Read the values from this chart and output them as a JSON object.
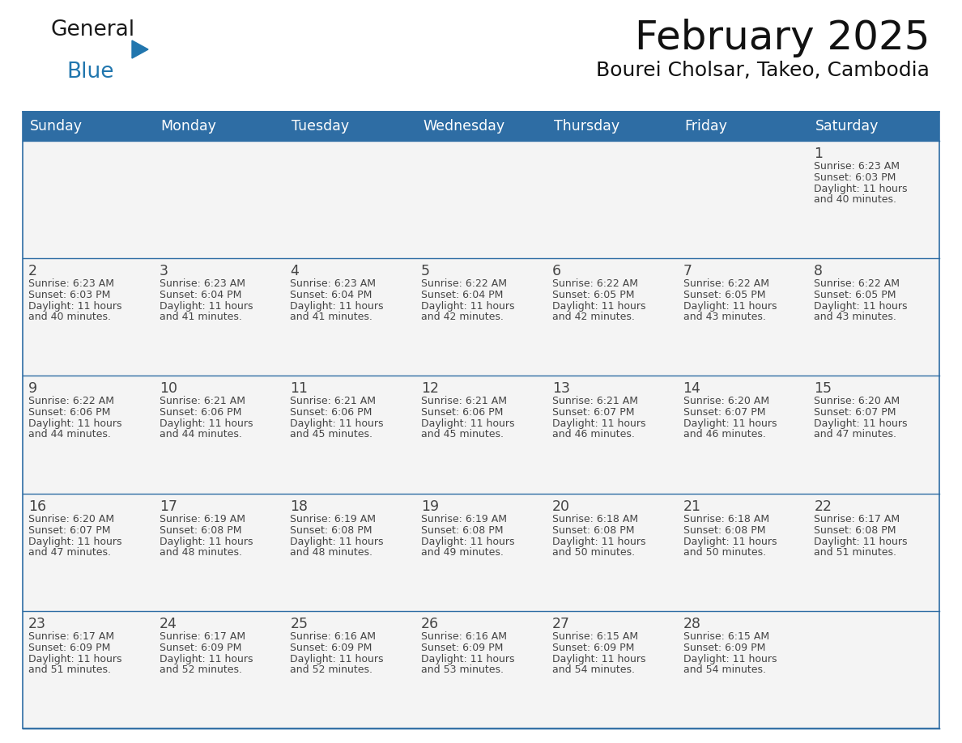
{
  "title": "February 2025",
  "subtitle": "Bourei Cholsar, Takeo, Cambodia",
  "header_color": "#2E6DA4",
  "header_text_color": "#FFFFFF",
  "cell_bg_color": "#F2F2F2",
  "border_color": "#2E6DA4",
  "text_color": "#444444",
  "days_of_week": [
    "Sunday",
    "Monday",
    "Tuesday",
    "Wednesday",
    "Thursday",
    "Friday",
    "Saturday"
  ],
  "logo_color1": "#1a1a1a",
  "logo_color2": "#2176AE",
  "calendar_data": [
    [
      null,
      null,
      null,
      null,
      null,
      null,
      {
        "day": 1,
        "sunrise": "6:23 AM",
        "sunset": "6:03 PM",
        "daylight_line1": "Daylight: 11 hours",
        "daylight_line2": "and 40 minutes."
      }
    ],
    [
      {
        "day": 2,
        "sunrise": "6:23 AM",
        "sunset": "6:03 PM",
        "daylight_line1": "Daylight: 11 hours",
        "daylight_line2": "and 40 minutes."
      },
      {
        "day": 3,
        "sunrise": "6:23 AM",
        "sunset": "6:04 PM",
        "daylight_line1": "Daylight: 11 hours",
        "daylight_line2": "and 41 minutes."
      },
      {
        "day": 4,
        "sunrise": "6:23 AM",
        "sunset": "6:04 PM",
        "daylight_line1": "Daylight: 11 hours",
        "daylight_line2": "and 41 minutes."
      },
      {
        "day": 5,
        "sunrise": "6:22 AM",
        "sunset": "6:04 PM",
        "daylight_line1": "Daylight: 11 hours",
        "daylight_line2": "and 42 minutes."
      },
      {
        "day": 6,
        "sunrise": "6:22 AM",
        "sunset": "6:05 PM",
        "daylight_line1": "Daylight: 11 hours",
        "daylight_line2": "and 42 minutes."
      },
      {
        "day": 7,
        "sunrise": "6:22 AM",
        "sunset": "6:05 PM",
        "daylight_line1": "Daylight: 11 hours",
        "daylight_line2": "and 43 minutes."
      },
      {
        "day": 8,
        "sunrise": "6:22 AM",
        "sunset": "6:05 PM",
        "daylight_line1": "Daylight: 11 hours",
        "daylight_line2": "and 43 minutes."
      }
    ],
    [
      {
        "day": 9,
        "sunrise": "6:22 AM",
        "sunset": "6:06 PM",
        "daylight_line1": "Daylight: 11 hours",
        "daylight_line2": "and 44 minutes."
      },
      {
        "day": 10,
        "sunrise": "6:21 AM",
        "sunset": "6:06 PM",
        "daylight_line1": "Daylight: 11 hours",
        "daylight_line2": "and 44 minutes."
      },
      {
        "day": 11,
        "sunrise": "6:21 AM",
        "sunset": "6:06 PM",
        "daylight_line1": "Daylight: 11 hours",
        "daylight_line2": "and 45 minutes."
      },
      {
        "day": 12,
        "sunrise": "6:21 AM",
        "sunset": "6:06 PM",
        "daylight_line1": "Daylight: 11 hours",
        "daylight_line2": "and 45 minutes."
      },
      {
        "day": 13,
        "sunrise": "6:21 AM",
        "sunset": "6:07 PM",
        "daylight_line1": "Daylight: 11 hours",
        "daylight_line2": "and 46 minutes."
      },
      {
        "day": 14,
        "sunrise": "6:20 AM",
        "sunset": "6:07 PM",
        "daylight_line1": "Daylight: 11 hours",
        "daylight_line2": "and 46 minutes."
      },
      {
        "day": 15,
        "sunrise": "6:20 AM",
        "sunset": "6:07 PM",
        "daylight_line1": "Daylight: 11 hours",
        "daylight_line2": "and 47 minutes."
      }
    ],
    [
      {
        "day": 16,
        "sunrise": "6:20 AM",
        "sunset": "6:07 PM",
        "daylight_line1": "Daylight: 11 hours",
        "daylight_line2": "and 47 minutes."
      },
      {
        "day": 17,
        "sunrise": "6:19 AM",
        "sunset": "6:08 PM",
        "daylight_line1": "Daylight: 11 hours",
        "daylight_line2": "and 48 minutes."
      },
      {
        "day": 18,
        "sunrise": "6:19 AM",
        "sunset": "6:08 PM",
        "daylight_line1": "Daylight: 11 hours",
        "daylight_line2": "and 48 minutes."
      },
      {
        "day": 19,
        "sunrise": "6:19 AM",
        "sunset": "6:08 PM",
        "daylight_line1": "Daylight: 11 hours",
        "daylight_line2": "and 49 minutes."
      },
      {
        "day": 20,
        "sunrise": "6:18 AM",
        "sunset": "6:08 PM",
        "daylight_line1": "Daylight: 11 hours",
        "daylight_line2": "and 50 minutes."
      },
      {
        "day": 21,
        "sunrise": "6:18 AM",
        "sunset": "6:08 PM",
        "daylight_line1": "Daylight: 11 hours",
        "daylight_line2": "and 50 minutes."
      },
      {
        "day": 22,
        "sunrise": "6:17 AM",
        "sunset": "6:08 PM",
        "daylight_line1": "Daylight: 11 hours",
        "daylight_line2": "and 51 minutes."
      }
    ],
    [
      {
        "day": 23,
        "sunrise": "6:17 AM",
        "sunset": "6:09 PM",
        "daylight_line1": "Daylight: 11 hours",
        "daylight_line2": "and 51 minutes."
      },
      {
        "day": 24,
        "sunrise": "6:17 AM",
        "sunset": "6:09 PM",
        "daylight_line1": "Daylight: 11 hours",
        "daylight_line2": "and 52 minutes."
      },
      {
        "day": 25,
        "sunrise": "6:16 AM",
        "sunset": "6:09 PM",
        "daylight_line1": "Daylight: 11 hours",
        "daylight_line2": "and 52 minutes."
      },
      {
        "day": 26,
        "sunrise": "6:16 AM",
        "sunset": "6:09 PM",
        "daylight_line1": "Daylight: 11 hours",
        "daylight_line2": "and 53 minutes."
      },
      {
        "day": 27,
        "sunrise": "6:15 AM",
        "sunset": "6:09 PM",
        "daylight_line1": "Daylight: 11 hours",
        "daylight_line2": "and 54 minutes."
      },
      {
        "day": 28,
        "sunrise": "6:15 AM",
        "sunset": "6:09 PM",
        "daylight_line1": "Daylight: 11 hours",
        "daylight_line2": "and 54 minutes."
      },
      null
    ]
  ]
}
